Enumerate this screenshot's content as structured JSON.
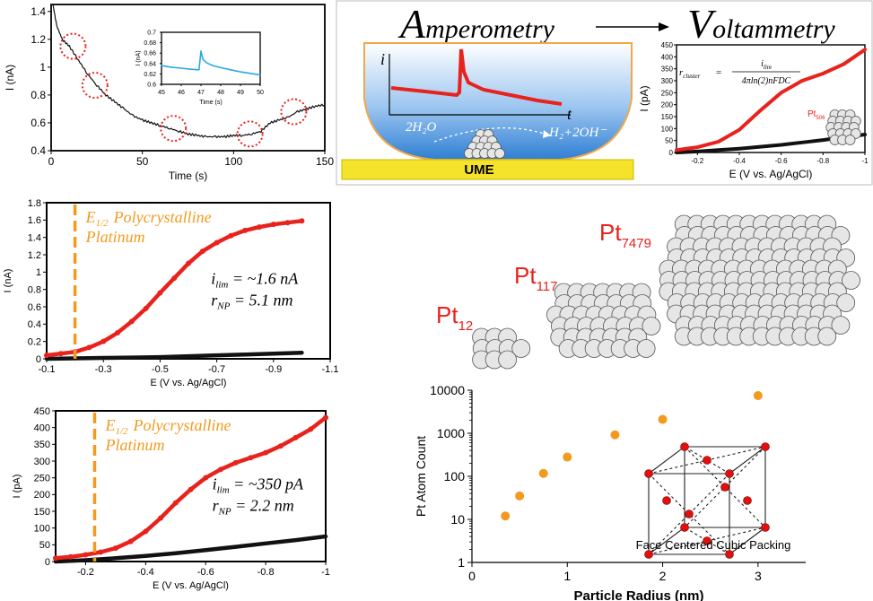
{
  "colors": {
    "red": "#e8221c",
    "orange": "#f39a1e",
    "black": "#111111",
    "cyan": "#29a9e0",
    "ume": "#f5e22a",
    "gradTop": "#ffffff",
    "gradBottom": "#2f7fd4"
  },
  "amperometry": {
    "title_cap": "A",
    "title_rest": "mperometry",
    "i_label": "i",
    "t_label": "t",
    "left_rxn": "2H₂O",
    "right_rxn": "H₂+2OH⁻",
    "ume_label": "UME"
  },
  "voltammetry_title": {
    "cap": "V",
    "rest": "oltammetry"
  },
  "equation": {
    "lhs": "r",
    "lhs_sub": "cluster",
    "eq": "=",
    "num": "i",
    "num_sub": "lim",
    "den": "4πln(2)nFDC"
  },
  "cluster_labels": {
    "pt506": {
      "base": "Pt",
      "sub": "506"
    },
    "pt12": {
      "base": "Pt",
      "sub": "12"
    },
    "pt117": {
      "base": "Pt",
      "sub": "117"
    },
    "pt7479": {
      "base": "Pt",
      "sub": "7479"
    }
  },
  "annotations": {
    "mid": {
      "ehalf": "E",
      "ehalf_sub": "1/2",
      "line1": "Polycrystalline",
      "line2": "Platinum",
      "ilim": "i",
      "ilim_sub": "lim",
      "ilim_val": " = ~1.6 nA",
      "rnp": "r",
      "rnp_sub": "NP",
      "rnp_val": " = 5.1 nm"
    },
    "bot": {
      "ehalf": "E",
      "ehalf_sub": "1/2",
      "line1": "Polycrystalline",
      "line2": "Platinum",
      "ilim": "i",
      "ilim_sub": "lim",
      "ilim_val": " = ~350 pA",
      "rnp": "r",
      "rnp_sub": "NP",
      "rnp_val": " = 2.2 nm"
    }
  },
  "fcc_label": "Face Centered Cubic Packing",
  "chart_data": [
    {
      "id": "amperometric_trace",
      "type": "line",
      "xlabel": "Time (s)",
      "ylabel": "I (nA)",
      "xlim": [
        0,
        150
      ],
      "ylim": [
        0.4,
        1.45
      ],
      "xticks": [
        "0",
        "50",
        "100",
        "150"
      ],
      "yticks": [
        "0.4",
        "0.6",
        "0.8",
        "1",
        "1.2",
        "1.4"
      ],
      "x": [
        1,
        3,
        6,
        10,
        15,
        20,
        25,
        30,
        35,
        40,
        45,
        50,
        55,
        60,
        65,
        70,
        75,
        80,
        85,
        90,
        95,
        100,
        105,
        110,
        115,
        120,
        125,
        130,
        135,
        140,
        145,
        150
      ],
      "y": [
        1.45,
        1.3,
        1.2,
        1.15,
        1.05,
        0.95,
        0.87,
        0.8,
        0.75,
        0.7,
        0.65,
        0.62,
        0.6,
        0.58,
        0.56,
        0.54,
        0.52,
        0.51,
        0.5,
        0.5,
        0.5,
        0.51,
        0.51,
        0.52,
        0.54,
        0.6,
        0.62,
        0.64,
        0.68,
        0.7,
        0.72,
        0.73
      ],
      "circled_events_x": [
        12,
        24,
        67,
        109,
        133
      ]
    },
    {
      "id": "inset",
      "type": "line",
      "xlabel": "Time (s)",
      "ylabel": "I (nA)",
      "xlim": [
        45,
        50
      ],
      "ylim": [
        0.6,
        0.7
      ],
      "xticks": [
        "45",
        "46",
        "47",
        "48",
        "49",
        "50"
      ],
      "yticks": [
        "0.6",
        "0.62",
        "0.64",
        "0.66",
        "0.68",
        "0.7"
      ],
      "x": [
        45,
        45.5,
        46,
        46.5,
        46.9,
        47.0,
        47.1,
        47.3,
        47.6,
        48,
        48.5,
        49,
        49.5,
        50
      ],
      "y": [
        0.636,
        0.633,
        0.631,
        0.629,
        0.628,
        0.664,
        0.648,
        0.641,
        0.636,
        0.632,
        0.628,
        0.624,
        0.621,
        0.618
      ]
    },
    {
      "id": "voltammogram_small",
      "type": "line",
      "xlabel": "E (V vs. Ag/AgCl)",
      "ylabel": "I (pA)",
      "xlim": [
        -0.1,
        -1.0
      ],
      "ylim": [
        0,
        450
      ],
      "xticks": [
        "-0.2",
        "-0.4",
        "-0.6",
        "-0.8",
        "-1"
      ],
      "yticks": [
        "0",
        "50",
        "100",
        "150",
        "200",
        "250",
        "300",
        "350",
        "400",
        "450"
      ],
      "series": [
        {
          "x": [
            -0.1,
            -0.2,
            -0.3,
            -0.4,
            -0.5,
            -0.6,
            -0.7,
            -0.8,
            -0.9,
            -1.0
          ],
          "y": [
            10,
            22,
            45,
            95,
            175,
            250,
            300,
            330,
            370,
            430
          ]
        },
        {
          "x": [
            -0.1,
            -0.2,
            -0.3,
            -0.4,
            -0.5,
            -0.6,
            -0.7,
            -0.8,
            -0.9,
            -1.0
          ],
          "y": [
            0,
            4,
            10,
            16,
            24,
            32,
            42,
            52,
            64,
            75
          ]
        }
      ]
    },
    {
      "id": "voltammogram_mid",
      "type": "line",
      "xlabel": "E (V vs. Ag/AgCl)",
      "ylabel": "I (nA)",
      "xlim": [
        -0.1,
        -1.1
      ],
      "ylim": [
        0,
        1.8
      ],
      "xticks": [
        "-0.1",
        "-0.3",
        "-0.5",
        "-0.7",
        "-0.9",
        "-1.1"
      ],
      "yticks": [
        "0",
        "0.2",
        "0.4",
        "0.6",
        "0.8",
        "1",
        "1.2",
        "1.4",
        "1.6",
        "1.8"
      ],
      "e_half": -0.2,
      "series": [
        {
          "x": [
            -0.1,
            -0.15,
            -0.2,
            -0.25,
            -0.3,
            -0.35,
            -0.4,
            -0.45,
            -0.5,
            -0.55,
            -0.6,
            -0.65,
            -0.7,
            -0.75,
            -0.8,
            -0.85,
            -0.9,
            -0.95,
            -1.0
          ],
          "y": [
            0.04,
            0.06,
            0.08,
            0.13,
            0.2,
            0.3,
            0.43,
            0.58,
            0.76,
            0.93,
            1.1,
            1.24,
            1.34,
            1.42,
            1.48,
            1.52,
            1.55,
            1.57,
            1.59
          ]
        },
        {
          "x": [
            -0.1,
            -0.2,
            -0.3,
            -0.4,
            -0.5,
            -0.6,
            -0.7,
            -0.8,
            -0.9,
            -1.0
          ],
          "y": [
            0,
            0.005,
            0.01,
            0.015,
            0.02,
            0.03,
            0.04,
            0.05,
            0.06,
            0.07
          ]
        }
      ]
    },
    {
      "id": "voltammogram_bottom",
      "type": "line",
      "xlabel": "E (V vs. Ag/AgCl)",
      "ylabel": "I (pA)",
      "xlim": [
        -0.1,
        -1.0
      ],
      "ylim": [
        0,
        450
      ],
      "xticks": [
        "-0.2",
        "-0.4",
        "-0.6",
        "-0.8",
        "-1"
      ],
      "yticks": [
        "0",
        "50",
        "100",
        "150",
        "200",
        "250",
        "300",
        "350",
        "400",
        "450"
      ],
      "e_half": -0.23,
      "series": [
        {
          "x": [
            -0.1,
            -0.15,
            -0.2,
            -0.25,
            -0.3,
            -0.35,
            -0.4,
            -0.45,
            -0.5,
            -0.55,
            -0.6,
            -0.65,
            -0.7,
            -0.75,
            -0.8,
            -0.85,
            -0.9,
            -0.95,
            -1.0
          ],
          "y": [
            10,
            14,
            20,
            28,
            40,
            60,
            90,
            130,
            175,
            215,
            250,
            275,
            295,
            310,
            325,
            345,
            370,
            395,
            430
          ]
        },
        {
          "x": [
            -0.1,
            -0.2,
            -0.3,
            -0.4,
            -0.5,
            -0.6,
            -0.7,
            -0.8,
            -0.9,
            -1.0
          ],
          "y": [
            0,
            4,
            10,
            17,
            25,
            34,
            44,
            54,
            64,
            75
          ]
        }
      ]
    },
    {
      "id": "atom_count",
      "type": "scatter",
      "xlabel": "Particle Radius (nm)",
      "ylabel": "Pt Atom Count",
      "xlim": [
        0,
        3.5
      ],
      "ylim": [
        1,
        10000
      ],
      "log_y": true,
      "xticks": [
        "0",
        "1",
        "2",
        "3"
      ],
      "yticks": [
        "1",
        "10",
        "100",
        "1000",
        "10000"
      ],
      "x": [
        0.35,
        0.5,
        0.75,
        1.0,
        1.5,
        2.0,
        3.0
      ],
      "y": [
        12,
        35,
        117,
        280,
        920,
        2100,
        7479
      ]
    }
  ]
}
